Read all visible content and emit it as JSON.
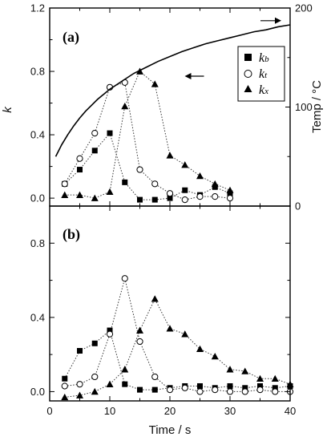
{
  "chart_data": [
    {
      "panel_label": "(a)",
      "type": "scatter",
      "xlabel": "",
      "ylabel": "k",
      "y2label": "Temp / °C",
      "xlim": [
        0,
        40
      ],
      "ylim": [
        -0.05,
        1.2
      ],
      "y2lim": [
        0,
        200
      ],
      "yticks": [
        "0.0",
        "0.4",
        "0.8",
        "1.2"
      ],
      "y2ticks": [
        "0",
        "100",
        "200"
      ],
      "legend_position": "top-right",
      "legend": [
        {
          "series": "kb",
          "main": "k",
          "sub": "b",
          "marker": "filled-square"
        },
        {
          "series": "kt",
          "main": "k",
          "sub": "t",
          "marker": "open-circle"
        },
        {
          "series": "kx",
          "main": "k",
          "sub": "x",
          "marker": "filled-triangle"
        }
      ],
      "series": [
        {
          "id": "kb",
          "marker": "filled-square",
          "x": [
            2.5,
            5,
            7.5,
            10,
            12.5,
            15,
            17.5,
            20,
            22.5,
            25,
            27.5,
            30
          ],
          "values": [
            0.09,
            0.18,
            0.3,
            0.41,
            0.1,
            -0.01,
            -0.01,
            0.0,
            0.05,
            0.02,
            0.07,
            0.03
          ]
        },
        {
          "id": "kt",
          "marker": "open-circle",
          "x": [
            2.5,
            5,
            7.5,
            10,
            12.5,
            15,
            17.5,
            20,
            22.5,
            25,
            27.5,
            30
          ],
          "values": [
            0.09,
            0.25,
            0.41,
            0.7,
            0.73,
            0.18,
            0.09,
            0.03,
            -0.01,
            0.01,
            0.01,
            0.0
          ]
        },
        {
          "id": "kx",
          "marker": "filled-triangle",
          "x": [
            2.5,
            5,
            7.5,
            10,
            12.5,
            15,
            17.5,
            20,
            22.5,
            25,
            27.5,
            30
          ],
          "values": [
            0.02,
            0.02,
            0.0,
            0.04,
            0.58,
            0.8,
            0.72,
            0.27,
            0.21,
            0.14,
            0.09,
            0.05
          ]
        }
      ],
      "temperature_curve": {
        "axis": "right",
        "x": [
          1,
          2,
          3,
          4,
          5,
          6,
          7,
          8,
          9,
          10,
          12,
          14,
          16,
          18,
          20,
          22,
          24,
          26,
          28,
          30,
          32,
          34,
          36,
          38,
          40
        ],
        "values": [
          50,
          62,
          72,
          81,
          89,
          96,
          102,
          108,
          113,
          118,
          126,
          134,
          140,
          146,
          151,
          156,
          160,
          164,
          167,
          170,
          173,
          176,
          178,
          181,
          183
        ]
      },
      "temperature_arrow_left": {
        "x": 23,
        "value": 0.77
      },
      "temperature_arrow_right": {
        "x": 38,
        "value": 1.12
      }
    },
    {
      "panel_label": "(b)",
      "type": "scatter",
      "xlabel": "Time / s",
      "ylabel": "",
      "xlim": [
        0,
        40
      ],
      "ylim": [
        -0.05,
        1.0
      ],
      "xticks": [
        "0",
        "10",
        "20",
        "30",
        "40"
      ],
      "yticks": [
        "0.0",
        "0.4",
        "0.8"
      ],
      "series": [
        {
          "id": "kb",
          "marker": "filled-square",
          "x": [
            2.5,
            5,
            7.5,
            10,
            12.5,
            15,
            17.5,
            20,
            22.5,
            25,
            27.5,
            30,
            32.5,
            35,
            37.5,
            40
          ],
          "values": [
            0.07,
            0.22,
            0.26,
            0.33,
            0.04,
            0.01,
            0.01,
            0.02,
            0.03,
            0.03,
            0.02,
            0.03,
            0.02,
            0.03,
            0.02,
            0.03
          ]
        },
        {
          "id": "kt",
          "marker": "open-circle",
          "x": [
            2.5,
            5,
            7.5,
            10,
            12.5,
            15,
            17.5,
            20,
            22.5,
            25,
            27.5,
            30,
            32.5,
            35,
            37.5,
            40
          ],
          "values": [
            0.03,
            0.04,
            0.08,
            0.31,
            0.61,
            0.27,
            0.08,
            0.01,
            0.02,
            0.0,
            0.01,
            0.0,
            0.0,
            0.01,
            0.0,
            0.0
          ]
        },
        {
          "id": "kx",
          "marker": "filled-triangle",
          "x": [
            2.5,
            5,
            7.5,
            10,
            12.5,
            15,
            17.5,
            20,
            22.5,
            25,
            27.5,
            30,
            32.5,
            35,
            37.5,
            40
          ],
          "values": [
            -0.03,
            -0.02,
            0.0,
            0.04,
            0.12,
            0.33,
            0.5,
            0.34,
            0.31,
            0.23,
            0.19,
            0.12,
            0.11,
            0.07,
            0.07,
            0.04
          ]
        }
      ]
    }
  ]
}
